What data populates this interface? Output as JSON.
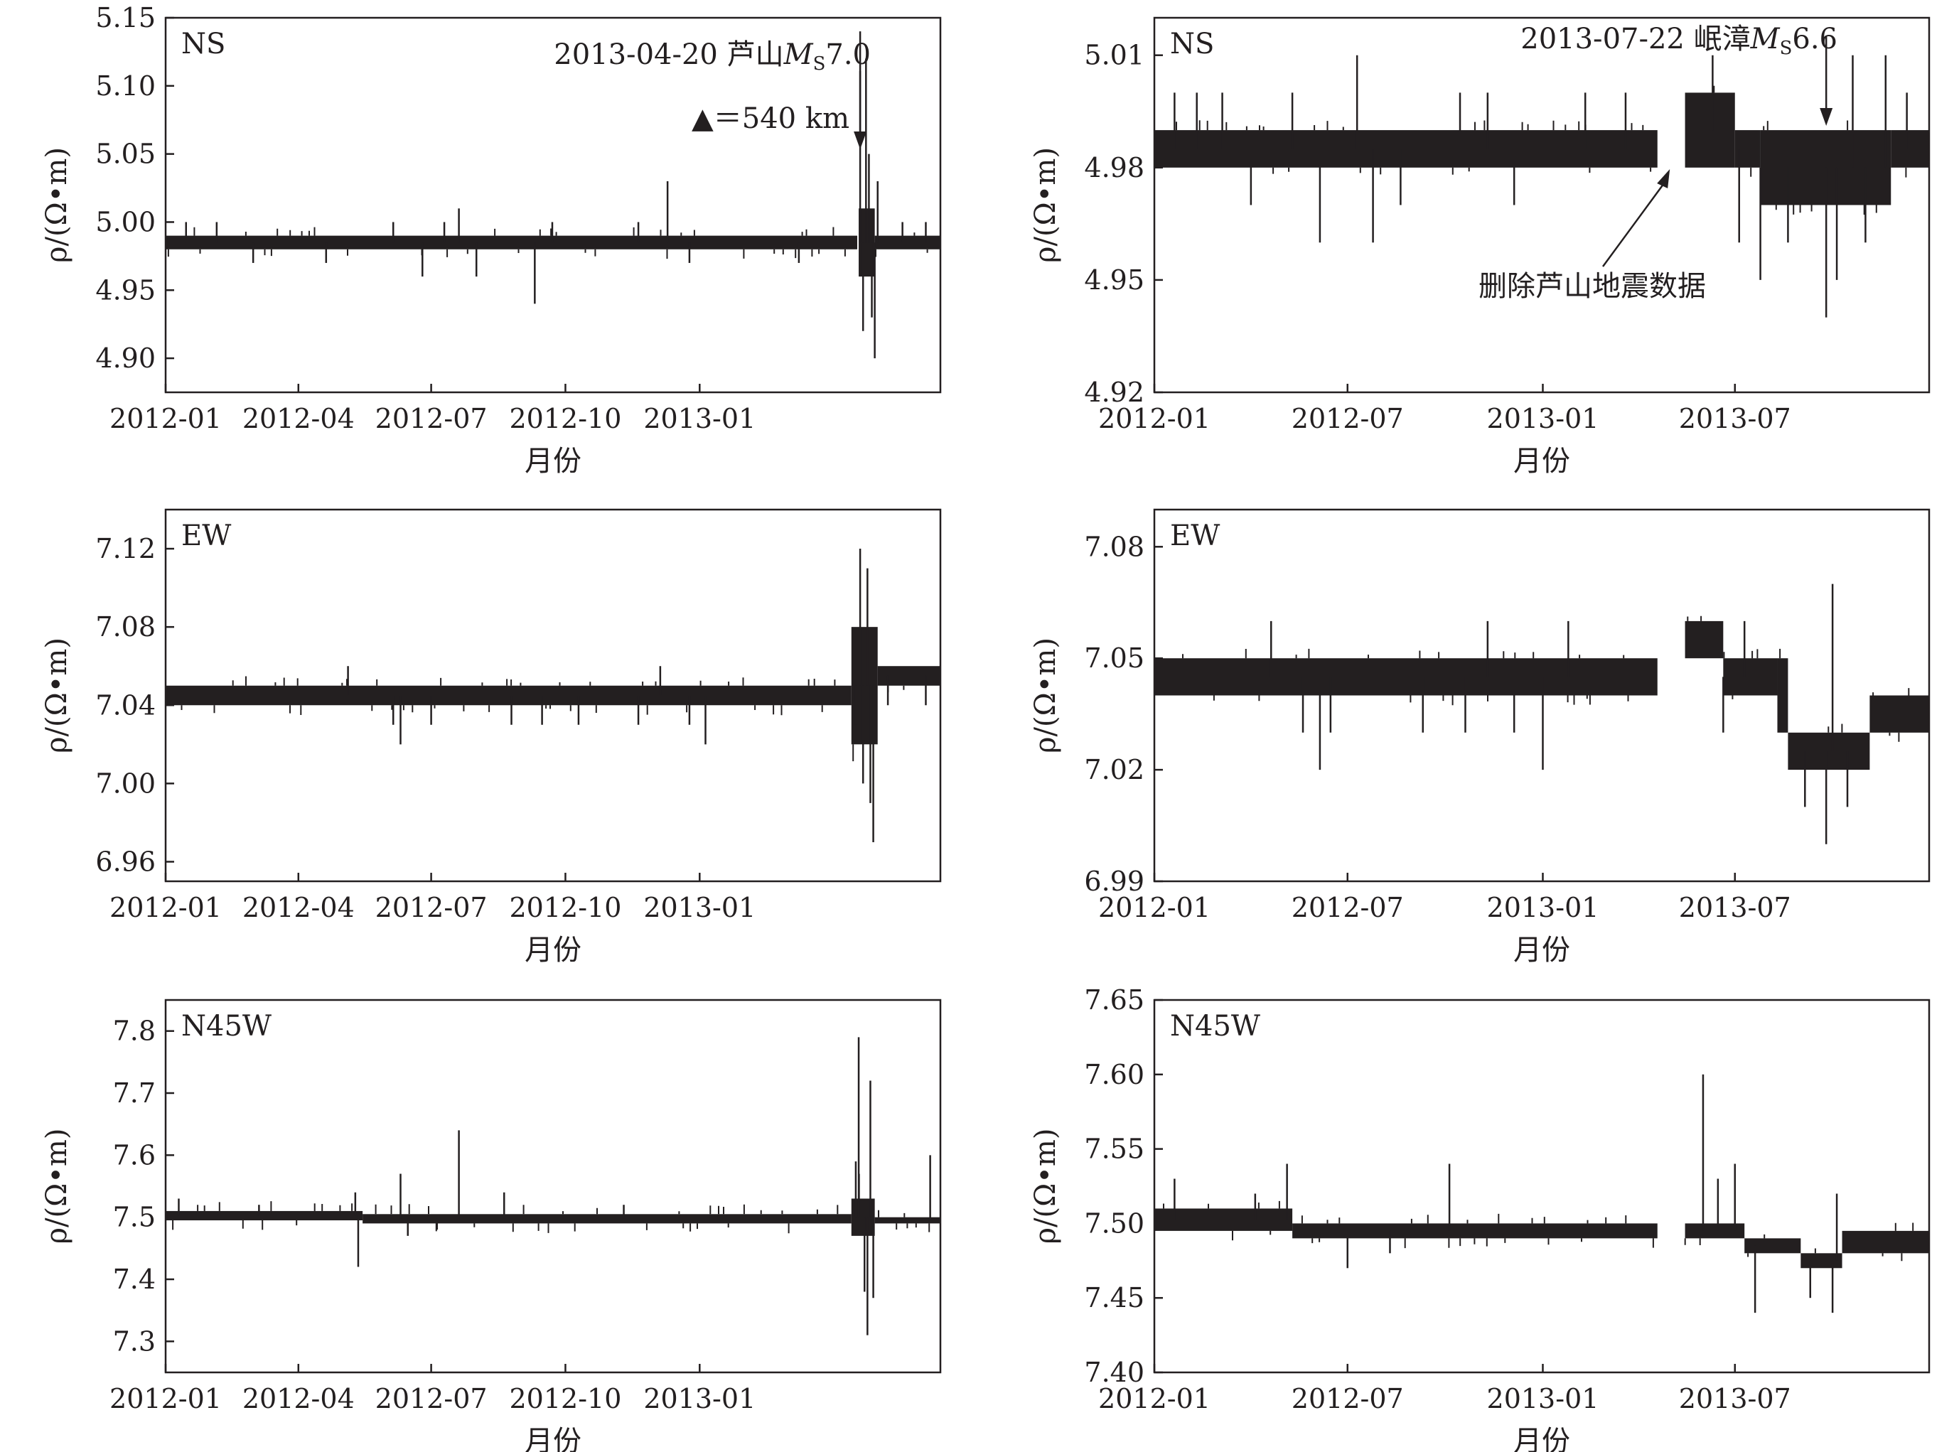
{
  "figure": {
    "ylabel": "ρ/(Ω•m)",
    "xlabel": "月份",
    "colors": {
      "ink": "#231f20",
      "background": "#ffffff"
    }
  },
  "chart_data": [
    {
      "type": "line",
      "label": "NS",
      "column": "left",
      "xlim": [
        "2012-01-01",
        "2013-06-15"
      ],
      "x_ticks": [
        "2012-01",
        "2012-04",
        "2012-07",
        "2012-10",
        "2013-01"
      ],
      "ylim": [
        4.875,
        5.15
      ],
      "y_ticks": [
        "4.90",
        "4.95",
        "5.00",
        "5.05",
        "5.10",
        "5.15"
      ],
      "baseline_segments": [
        {
          "from": "2012-01-01",
          "to": "2013-04-19",
          "low": 4.98,
          "high": 4.99
        }
      ],
      "noisy_segment": {
        "from": "2013-04-20",
        "to": "2013-05-01",
        "low": 4.96,
        "high": 5.01
      },
      "tail_segment": {
        "from": "2013-05-01",
        "to": "2013-06-15",
        "low": 4.98,
        "high": 4.99
      },
      "spikes": [
        {
          "x": "2012-01-15",
          "y": 5.0
        },
        {
          "x": "2012-02-05",
          "y": 5.0
        },
        {
          "x": "2012-03-01",
          "y": 4.97
        },
        {
          "x": "2012-04-20",
          "y": 4.97
        },
        {
          "x": "2012-06-05",
          "y": 5.0
        },
        {
          "x": "2012-06-25",
          "y": 4.96
        },
        {
          "x": "2012-07-10",
          "y": 5.0
        },
        {
          "x": "2012-07-20",
          "y": 5.01
        },
        {
          "x": "2012-08-01",
          "y": 4.96
        },
        {
          "x": "2012-09-10",
          "y": 4.94
        },
        {
          "x": "2012-09-22",
          "y": 5.0
        },
        {
          "x": "2012-11-20",
          "y": 5.0
        },
        {
          "x": "2012-12-10",
          "y": 5.03
        },
        {
          "x": "2012-12-25",
          "y": 4.97
        },
        {
          "x": "2013-03-10",
          "y": 4.97
        },
        {
          "x": "2013-04-21",
          "y": 5.14
        },
        {
          "x": "2013-04-23",
          "y": 4.92
        },
        {
          "x": "2013-04-25",
          "y": 5.12
        },
        {
          "x": "2013-04-27",
          "y": 5.05
        },
        {
          "x": "2013-04-29",
          "y": 4.93
        },
        {
          "x": "2013-05-01",
          "y": 4.9
        },
        {
          "x": "2013-05-03",
          "y": 5.03
        },
        {
          "x": "2013-05-20",
          "y": 5.0
        },
        {
          "x": "2013-06-05",
          "y": 5.0
        }
      ],
      "annotations": {
        "event_title_prefix": "2013-04-20 芦山",
        "event_magnitude_symbol": "M",
        "event_magnitude_subscript": "S",
        "event_magnitude_value": "7.0",
        "event_date": "2013-04-21",
        "distance_marker": "▲",
        "distance_text": "＝540 km"
      }
    },
    {
      "type": "line",
      "label": "NS",
      "column": "right",
      "xlim": [
        "2012-01-01",
        "2013-12-31"
      ],
      "x_ticks": [
        "2012-01",
        "2012-07",
        "2013-01",
        "2013-07"
      ],
      "ylim": [
        4.92,
        5.02
      ],
      "y_ticks": [
        "4.92",
        "4.95",
        "4.98",
        "5.01"
      ],
      "baseline_segments": [
        {
          "from": "2012-01-01",
          "to": "2013-04-19",
          "low": 4.98,
          "high": 4.99
        },
        {
          "from": "2013-05-15",
          "to": "2013-07-01",
          "low": 4.98,
          "high": 5.0
        },
        {
          "from": "2013-07-01",
          "to": "2013-07-25",
          "low": 4.98,
          "high": 4.99
        },
        {
          "from": "2013-07-25",
          "to": "2013-11-25",
          "low": 4.97,
          "high": 4.99
        },
        {
          "from": "2013-11-25",
          "to": "2013-12-31",
          "low": 4.98,
          "high": 4.99
        }
      ],
      "spikes": [
        {
          "x": "2012-01-20",
          "y": 5.0
        },
        {
          "x": "2012-02-10",
          "y": 5.0
        },
        {
          "x": "2012-03-05",
          "y": 5.0
        },
        {
          "x": "2012-04-01",
          "y": 4.97
        },
        {
          "x": "2012-05-10",
          "y": 5.0
        },
        {
          "x": "2012-06-05",
          "y": 4.96
        },
        {
          "x": "2012-07-10",
          "y": 5.01
        },
        {
          "x": "2012-07-25",
          "y": 4.96
        },
        {
          "x": "2012-08-20",
          "y": 4.97
        },
        {
          "x": "2012-10-15",
          "y": 5.0
        },
        {
          "x": "2012-11-10",
          "y": 5.0
        },
        {
          "x": "2012-12-05",
          "y": 4.97
        },
        {
          "x": "2013-02-10",
          "y": 5.0
        },
        {
          "x": "2013-03-20",
          "y": 5.0
        },
        {
          "x": "2013-06-10",
          "y": 5.01
        },
        {
          "x": "2013-07-05",
          "y": 4.96
        },
        {
          "x": "2013-07-25",
          "y": 4.95
        },
        {
          "x": "2013-08-20",
          "y": 4.96
        },
        {
          "x": "2013-09-25",
          "y": 4.94
        },
        {
          "x": "2013-10-05",
          "y": 4.95
        },
        {
          "x": "2013-10-20",
          "y": 5.01
        },
        {
          "x": "2013-11-01",
          "y": 4.96
        },
        {
          "x": "2013-11-20",
          "y": 5.01
        },
        {
          "x": "2013-12-10",
          "y": 5.0
        }
      ],
      "annotations": {
        "event_title_prefix": "2013-07-22 岷漳",
        "event_magnitude_symbol": "M",
        "event_magnitude_subscript": "S",
        "event_magnitude_value": "6.6",
        "event_date": "2013-09-25",
        "gap_note": "删除芦山地震数据",
        "gap_date": "2013-05-02"
      }
    },
    {
      "type": "line",
      "label": "EW",
      "column": "left",
      "xlim": [
        "2012-01-01",
        "2013-06-15"
      ],
      "x_ticks": [
        "2012-01",
        "2012-04",
        "2012-07",
        "2012-10",
        "2013-01"
      ],
      "ylim": [
        6.95,
        7.14
      ],
      "y_ticks": [
        "6.96",
        "7.00",
        "7.04",
        "7.08",
        "7.12"
      ],
      "baseline_segments": [
        {
          "from": "2012-01-01",
          "to": "2013-04-15",
          "low": 7.04,
          "high": 7.05
        }
      ],
      "noisy_segment": {
        "from": "2013-04-15",
        "to": "2013-05-03",
        "low": 7.02,
        "high": 7.08
      },
      "tail_segment": {
        "from": "2013-05-03",
        "to": "2013-06-15",
        "low": 7.05,
        "high": 7.06
      },
      "spikes": [
        {
          "x": "2012-05-05",
          "y": 7.06
        },
        {
          "x": "2012-06-05",
          "y": 7.03
        },
        {
          "x": "2012-06-10",
          "y": 7.02
        },
        {
          "x": "2012-07-01",
          "y": 7.03
        },
        {
          "x": "2012-08-25",
          "y": 7.03
        },
        {
          "x": "2012-09-15",
          "y": 7.03
        },
        {
          "x": "2012-10-10",
          "y": 7.03
        },
        {
          "x": "2012-11-20",
          "y": 7.03
        },
        {
          "x": "2012-12-05",
          "y": 7.06
        },
        {
          "x": "2012-12-25",
          "y": 7.03
        },
        {
          "x": "2013-01-05",
          "y": 7.02
        },
        {
          "x": "2013-04-18",
          "y": 7.03
        },
        {
          "x": "2013-04-21",
          "y": 7.12
        },
        {
          "x": "2013-04-23",
          "y": 7.0
        },
        {
          "x": "2013-04-26",
          "y": 7.11
        },
        {
          "x": "2013-04-28",
          "y": 6.99
        },
        {
          "x": "2013-04-30",
          "y": 6.97
        },
        {
          "x": "2013-05-10",
          "y": 7.04
        },
        {
          "x": "2013-06-05",
          "y": 7.04
        }
      ]
    },
    {
      "type": "line",
      "label": "EW",
      "column": "right",
      "xlim": [
        "2012-01-01",
        "2013-12-31"
      ],
      "x_ticks": [
        "2012-01",
        "2012-07",
        "2013-01",
        "2013-07"
      ],
      "ylim": [
        6.99,
        7.09
      ],
      "y_ticks": [
        "6.99",
        "7.02",
        "7.05",
        "7.08"
      ],
      "baseline_segments": [
        {
          "from": "2012-01-01",
          "to": "2013-04-19",
          "low": 7.04,
          "high": 7.05
        },
        {
          "from": "2013-05-15",
          "to": "2013-06-20",
          "low": 7.05,
          "high": 7.06
        },
        {
          "from": "2013-06-20",
          "to": "2013-08-10",
          "low": 7.04,
          "high": 7.05
        },
        {
          "from": "2013-08-10",
          "to": "2013-08-20",
          "low": 7.03,
          "high": 7.05
        },
        {
          "from": "2013-08-20",
          "to": "2013-11-05",
          "low": 7.02,
          "high": 7.03
        },
        {
          "from": "2013-11-05",
          "to": "2013-12-31",
          "low": 7.03,
          "high": 7.04
        }
      ],
      "spikes": [
        {
          "x": "2012-04-20",
          "y": 7.06
        },
        {
          "x": "2012-05-20",
          "y": 7.03
        },
        {
          "x": "2012-06-05",
          "y": 7.02
        },
        {
          "x": "2012-06-15",
          "y": 7.03
        },
        {
          "x": "2012-09-10",
          "y": 7.03
        },
        {
          "x": "2012-10-20",
          "y": 7.03
        },
        {
          "x": "2012-11-10",
          "y": 7.06
        },
        {
          "x": "2012-12-05",
          "y": 7.03
        },
        {
          "x": "2013-01-01",
          "y": 7.02
        },
        {
          "x": "2013-01-25",
          "y": 7.06
        },
        {
          "x": "2013-06-20",
          "y": 7.03
        },
        {
          "x": "2013-07-10",
          "y": 7.06
        },
        {
          "x": "2013-09-05",
          "y": 7.01
        },
        {
          "x": "2013-09-25",
          "y": 7.0
        },
        {
          "x": "2013-10-01",
          "y": 7.07
        },
        {
          "x": "2013-10-15",
          "y": 7.01
        }
      ]
    },
    {
      "type": "line",
      "label": "N45W",
      "column": "left",
      "xlim": [
        "2012-01-01",
        "2013-06-15"
      ],
      "x_ticks": [
        "2012-01",
        "2012-04",
        "2012-07",
        "2012-10",
        "2013-01"
      ],
      "ylim": [
        7.25,
        7.85
      ],
      "y_ticks": [
        "7.3",
        "7.4",
        "7.5",
        "7.6",
        "7.7",
        "7.8"
      ],
      "baseline_segments": [
        {
          "from": "2012-01-01",
          "to": "2012-05-15",
          "low": 7.495,
          "high": 7.51
        },
        {
          "from": "2012-05-15",
          "to": "2013-04-15",
          "low": 7.49,
          "high": 7.505
        }
      ],
      "noisy_segment": {
        "from": "2013-04-15",
        "to": "2013-05-01",
        "low": 7.47,
        "high": 7.53
      },
      "tail_segment": {
        "from": "2013-05-01",
        "to": "2013-06-15",
        "low": 7.49,
        "high": 7.5
      },
      "spikes": [
        {
          "x": "2012-01-10",
          "y": 7.53
        },
        {
          "x": "2012-03-05",
          "y": 7.52
        },
        {
          "x": "2012-05-10",
          "y": 7.54
        },
        {
          "x": "2012-05-12",
          "y": 7.42
        },
        {
          "x": "2012-06-10",
          "y": 7.57
        },
        {
          "x": "2012-06-15",
          "y": 7.47
        },
        {
          "x": "2012-07-05",
          "y": 7.48
        },
        {
          "x": "2012-07-20",
          "y": 7.64
        },
        {
          "x": "2012-08-20",
          "y": 7.54
        },
        {
          "x": "2012-11-10",
          "y": 7.52
        },
        {
          "x": "2013-04-18",
          "y": 7.59
        },
        {
          "x": "2013-04-20",
          "y": 7.79
        },
        {
          "x": "2013-04-24",
          "y": 7.38
        },
        {
          "x": "2013-04-26",
          "y": 7.31
        },
        {
          "x": "2013-04-28",
          "y": 7.72
        },
        {
          "x": "2013-04-30",
          "y": 7.37
        },
        {
          "x": "2013-06-08",
          "y": 7.6
        }
      ]
    },
    {
      "type": "line",
      "label": "N45W",
      "column": "right",
      "xlim": [
        "2012-01-01",
        "2013-12-31"
      ],
      "x_ticks": [
        "2012-01",
        "2012-07",
        "2013-01",
        "2013-07"
      ],
      "ylim": [
        7.4,
        7.65
      ],
      "y_ticks": [
        "7.40",
        "7.45",
        "7.50",
        "7.55",
        "7.60",
        "7.65"
      ],
      "baseline_segments": [
        {
          "from": "2012-01-01",
          "to": "2012-05-10",
          "low": 7.495,
          "high": 7.51
        },
        {
          "from": "2012-05-10",
          "to": "2013-04-19",
          "low": 7.49,
          "high": 7.5
        },
        {
          "from": "2013-05-15",
          "to": "2013-07-10",
          "low": 7.49,
          "high": 7.5
        },
        {
          "from": "2013-07-10",
          "to": "2013-09-01",
          "low": 7.48,
          "high": 7.49
        },
        {
          "from": "2013-09-01",
          "to": "2013-10-10",
          "low": 7.47,
          "high": 7.48
        },
        {
          "from": "2013-10-10",
          "to": "2013-12-31",
          "low": 7.48,
          "high": 7.495
        }
      ],
      "spikes": [
        {
          "x": "2012-01-20",
          "y": 7.53
        },
        {
          "x": "2012-04-05",
          "y": 7.52
        },
        {
          "x": "2012-05-05",
          "y": 7.54
        },
        {
          "x": "2012-07-01",
          "y": 7.47
        },
        {
          "x": "2012-10-05",
          "y": 7.54
        },
        {
          "x": "2012-08-10",
          "y": 7.48
        },
        {
          "x": "2013-06-01",
          "y": 7.6
        },
        {
          "x": "2013-06-15",
          "y": 7.53
        },
        {
          "x": "2013-07-01",
          "y": 7.54
        },
        {
          "x": "2013-07-20",
          "y": 7.44
        },
        {
          "x": "2013-09-10",
          "y": 7.45
        },
        {
          "x": "2013-10-01",
          "y": 7.44
        },
        {
          "x": "2013-10-05",
          "y": 7.52
        }
      ]
    }
  ]
}
